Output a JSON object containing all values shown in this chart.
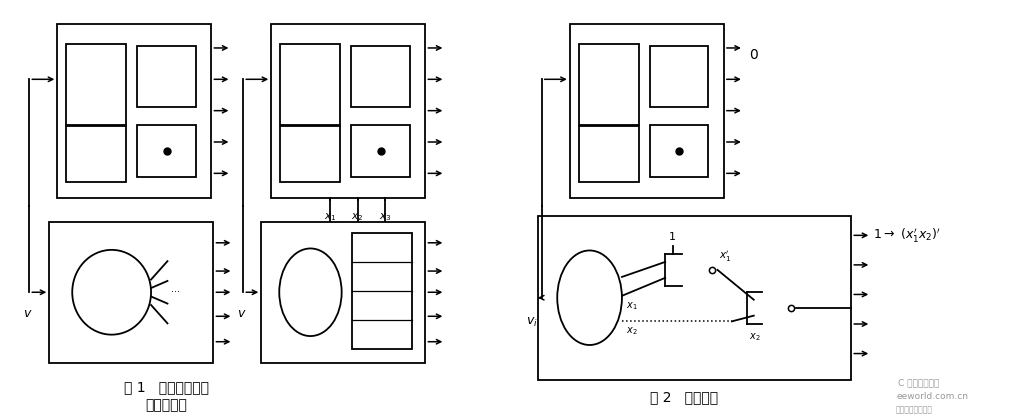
{
  "fig_width": 10.1,
  "fig_height": 4.16,
  "dpi": 100,
  "bg_color": "#ffffff",
  "fig1_caption_line1": "图 1   注入符号前及",
  "fig1_caption_line2": "注入符号后",
  "fig2_caption": "图 2   符号传播",
  "lw": 1.3,
  "arrow_lw": 1.1
}
